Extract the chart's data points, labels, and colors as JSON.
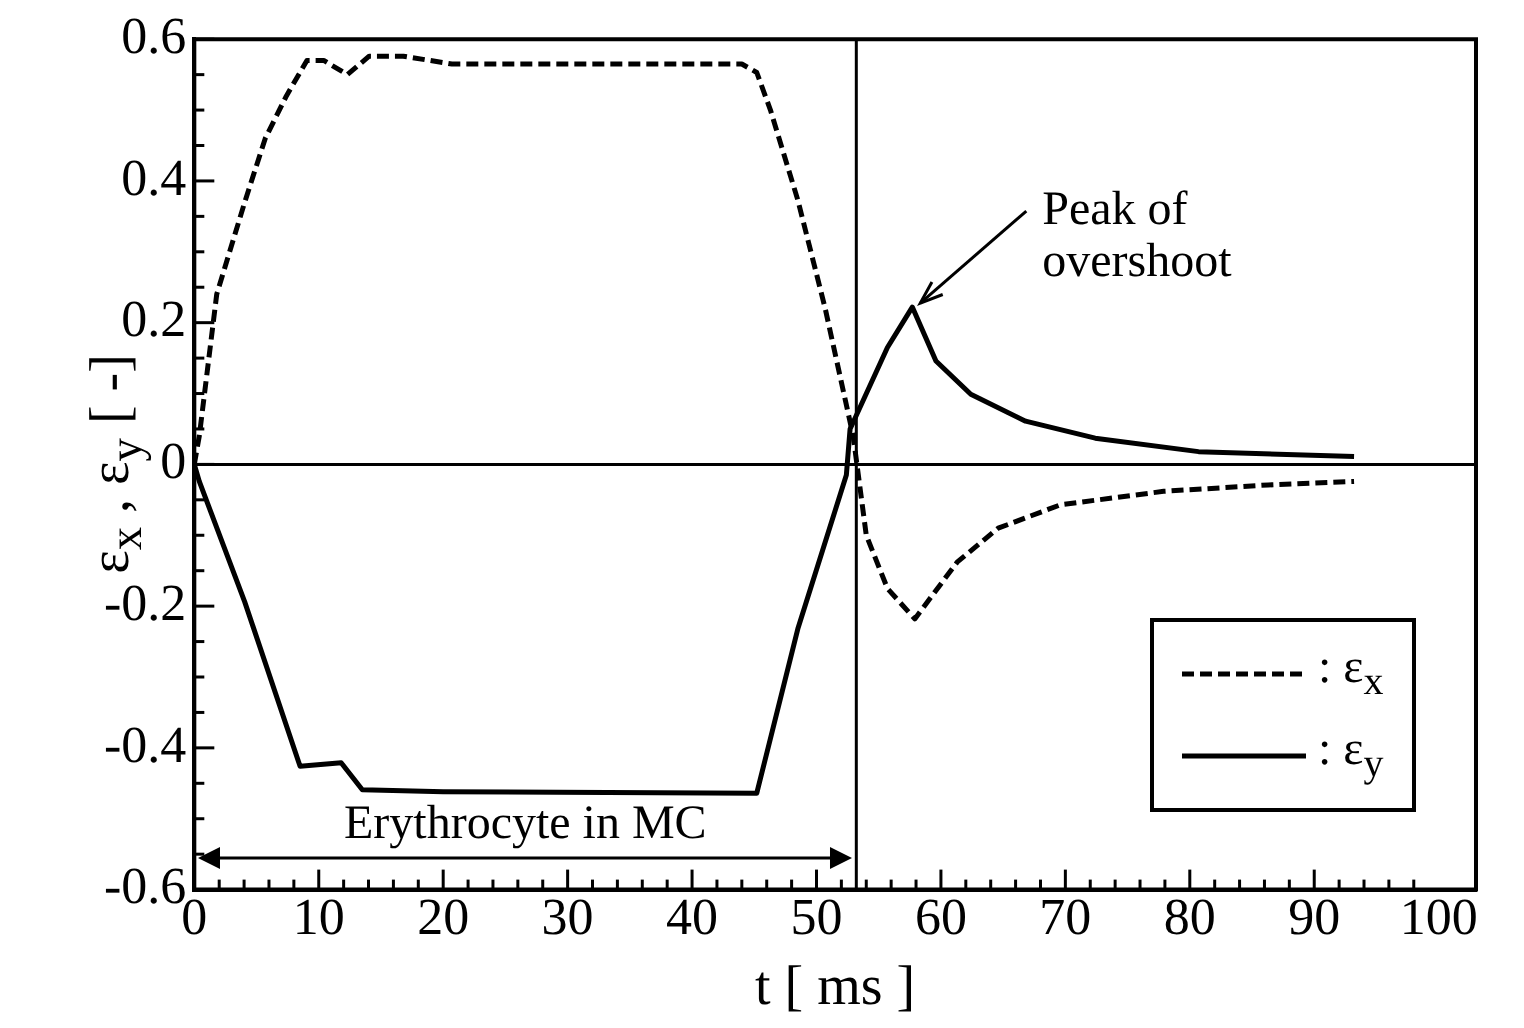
{
  "chart_data": {
    "type": "line",
    "xlabel": "t [ ms ]",
    "ylabel": "ε$_{x}$ , ε$_{y}$ [ -]",
    "xlim": [
      0,
      103
    ],
    "xticks": [
      0,
      10,
      20,
      30,
      40,
      50,
      60,
      70,
      80,
      90,
      100
    ],
    "ylim": [
      -0.6,
      0.6
    ],
    "yticks": [
      -0.6,
      -0.4,
      -0.2,
      0,
      0.2,
      0.4,
      0.6
    ],
    "grid": false,
    "legend": "bottom right",
    "marker": "none",
    "series": [
      {
        "name": ": ε$_{x}$",
        "color": "#000000",
        "line_style": "dashed",
        "x": [
          0,
          0.4,
          1.8,
          4.05,
          5.7,
          7.4,
          9.05,
          10.4,
          12.3,
          14.05,
          16.8,
          20.7,
          44,
          45.2,
          46.3,
          48.5,
          50.7,
          52.95,
          54,
          55.7,
          57.9,
          61.3,
          64.6,
          69.6,
          77.9,
          86.3,
          93.2
        ],
        "values": [
          0,
          0.04,
          0.24,
          0.37,
          0.46,
          0.52,
          0.57,
          0.57,
          0.55,
          0.576,
          0.576,
          0.565,
          0.565,
          0.553,
          0.5,
          0.373,
          0.22,
          0.04,
          -0.1,
          -0.175,
          -0.218,
          -0.138,
          -0.09,
          -0.057,
          -0.038,
          -0.029,
          -0.024
        ]
      },
      {
        "name": ": ε$_{y}$",
        "color": "#000000",
        "line_style": "solid",
        "x": [
          0,
          0.4,
          4.05,
          8.5,
          11.8,
          13.5,
          20,
          45.2,
          48.5,
          52.4,
          52.7,
          55.7,
          57.7,
          59.6,
          62.4,
          66.8,
          72.4,
          80.7,
          93.2
        ],
        "values": [
          0,
          -0.024,
          -0.194,
          -0.426,
          -0.421,
          -0.459,
          -0.462,
          -0.464,
          -0.232,
          -0.015,
          0.05,
          0.165,
          0.222,
          0.146,
          0.099,
          0.061,
          0.037,
          0.018,
          0.011
        ]
      }
    ],
    "ref_lines": [
      {
        "axis": "x",
        "value": 53.2
      },
      {
        "axis": "y",
        "value": 0
      }
    ],
    "annotations": [
      {
        "text": "Peak of overshoot",
        "x": 57.7,
        "y": 0.222
      },
      "Erythrocyte in MC"
    ]
  }
}
